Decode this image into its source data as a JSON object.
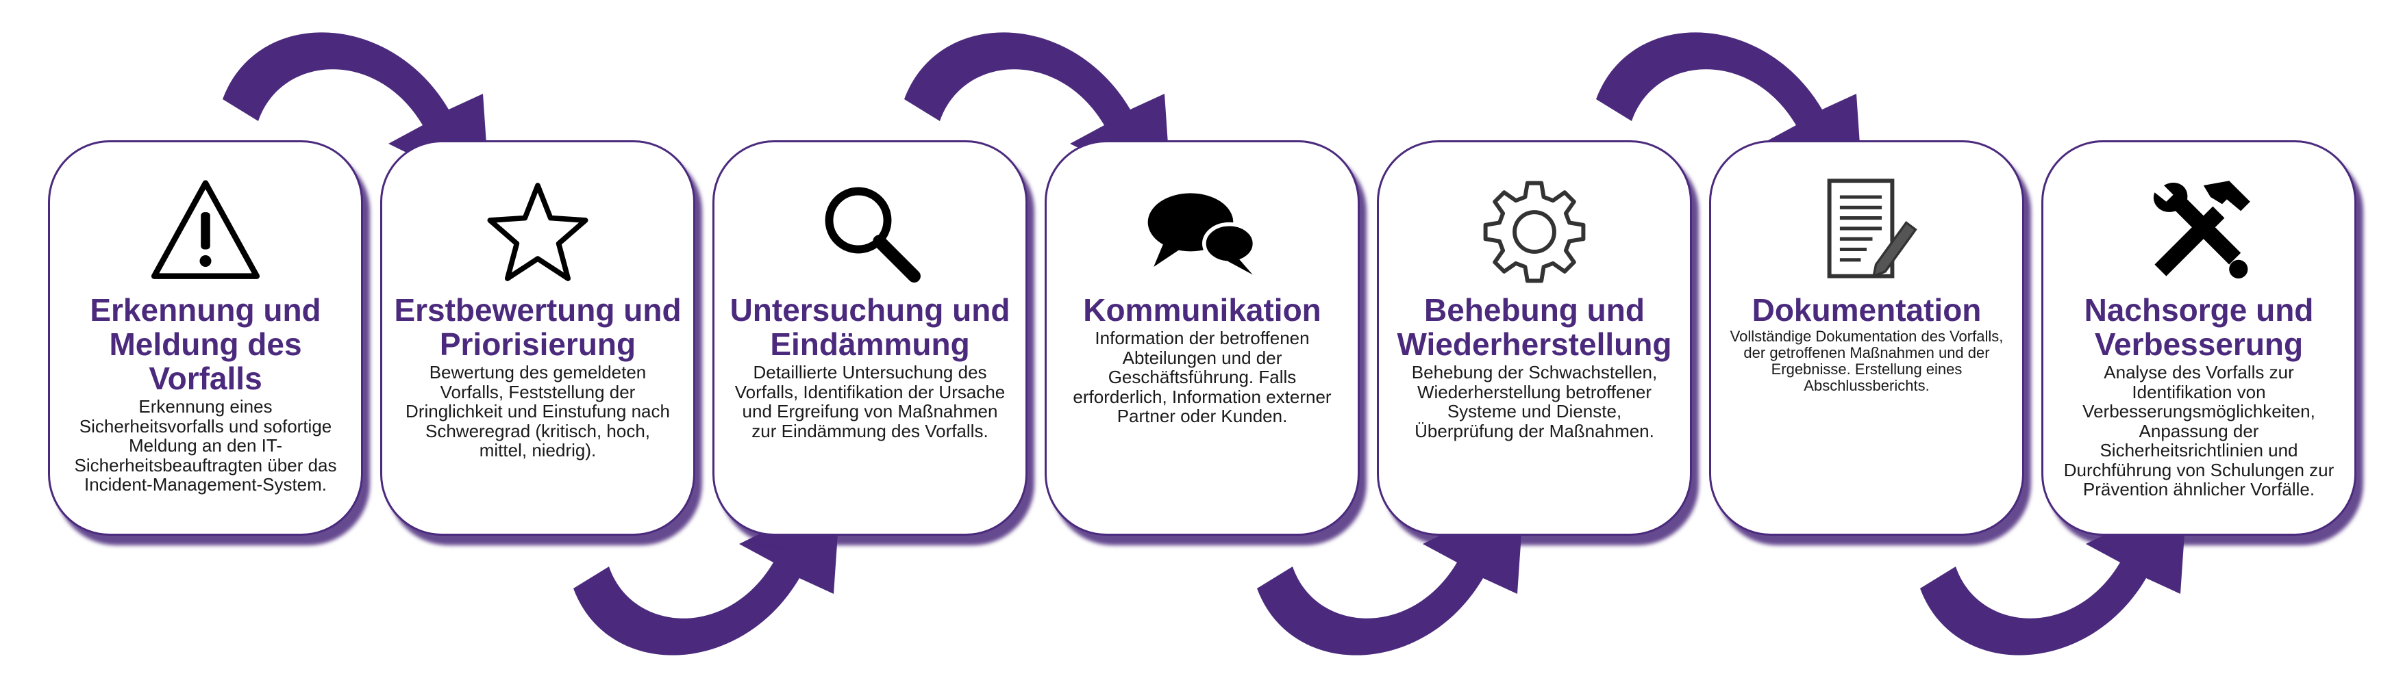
{
  "steps": [
    {
      "icon": "warning-icon",
      "title": "Erkennung und Meldung des Vorfalls",
      "description": "Erkennung eines Sicherheitsvorfalls und sofortige Meldung an den IT-Sicherheitsbeauftragten über das Incident-Management-System."
    },
    {
      "icon": "star-icon",
      "title": "Erstbewertung und Priorisierung",
      "description": "Bewertung des gemeldeten Vorfalls, Feststellung der Dringlichkeit und Einstufung nach Schweregrad (kritisch, hoch, mittel, niedrig)."
    },
    {
      "icon": "magnifier-icon",
      "title": "Untersuchung und Eindämmung",
      "description": "Detaillierte Untersuchung des Vorfalls, Identifikation der Ursache und Ergreifung von Maßnahmen zur Eindämmung des Vorfalls."
    },
    {
      "icon": "speech-bubbles-icon",
      "title": "Kommunikation",
      "description": "Information der betroffenen Abteilungen und der Geschäftsführung. Falls erforderlich, Information externer Partner oder Kunden."
    },
    {
      "icon": "gear-icon",
      "title": "Behebung und Wiederherstellung",
      "description": "Behebung der Schwachstellen, Wiederherstellung betroffener Systeme und Dienste, Überprüfung der Maßnahmen."
    },
    {
      "icon": "document-pen-icon",
      "title": "Dokumentation",
      "description": "Vollständige Dokumentation des Vorfalls, der getroffenen Maßnahmen und der Ergebnisse. Erstellung eines Abschlussberichts."
    },
    {
      "icon": "tools-icon",
      "title": "Nachsorge und Verbesserung",
      "description": "Analyse des Vorfalls zur Identifikation von Verbesserungsmöglichkeiten, Anpassung der Sicherheitsrichtlinien und Durchführung von Schulungen zur Prävention ähnlicher Vorfälle."
    }
  ],
  "colors": {
    "accent": "#4b2a7d",
    "border": "#4b2a7d",
    "text": "#1a1a1a"
  }
}
